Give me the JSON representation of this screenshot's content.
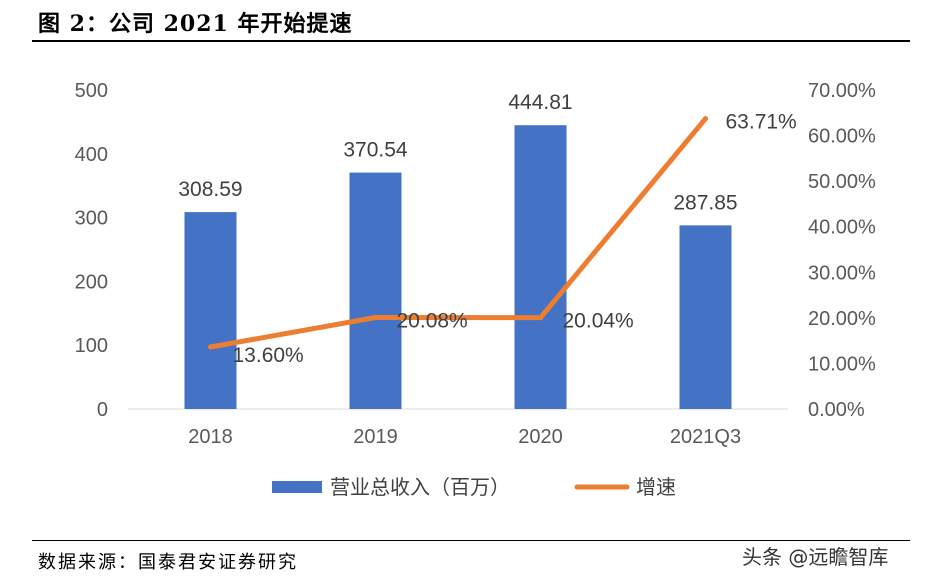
{
  "figure": {
    "title": "图 2：公司 2021 年开始提速",
    "source": "数据来源：国泰君安证券研究",
    "watermark": "头条 @远瞻智库"
  },
  "chart_data": {
    "type": "bar+line",
    "categories": [
      "2018",
      "2019",
      "2020",
      "2021Q3"
    ],
    "series": [
      {
        "name": "营业总收入（百万）",
        "type": "bar",
        "axis": "left",
        "values": [
          308.59,
          370.54,
          444.81,
          287.85
        ],
        "labels": [
          "308.59",
          "370.54",
          "444.81",
          "287.85"
        ],
        "color": "#4472C4"
      },
      {
        "name": "增速",
        "type": "line",
        "axis": "right",
        "values": [
          13.6,
          20.08,
          20.04,
          63.71
        ],
        "labels": [
          "13.60%",
          "20.08%",
          "20.04%",
          "63.71%"
        ],
        "color": "#ED7D31"
      }
    ],
    "y_left": {
      "min": 0,
      "max": 500,
      "ticks": [
        "0",
        "100",
        "200",
        "300",
        "400",
        "500"
      ]
    },
    "y_right": {
      "min": 0,
      "max": 70,
      "ticks": [
        "0.00%",
        "10.00%",
        "20.00%",
        "30.00%",
        "40.00%",
        "50.00%",
        "60.00%",
        "70.00%"
      ]
    },
    "grid": false,
    "legend": "bottom"
  }
}
